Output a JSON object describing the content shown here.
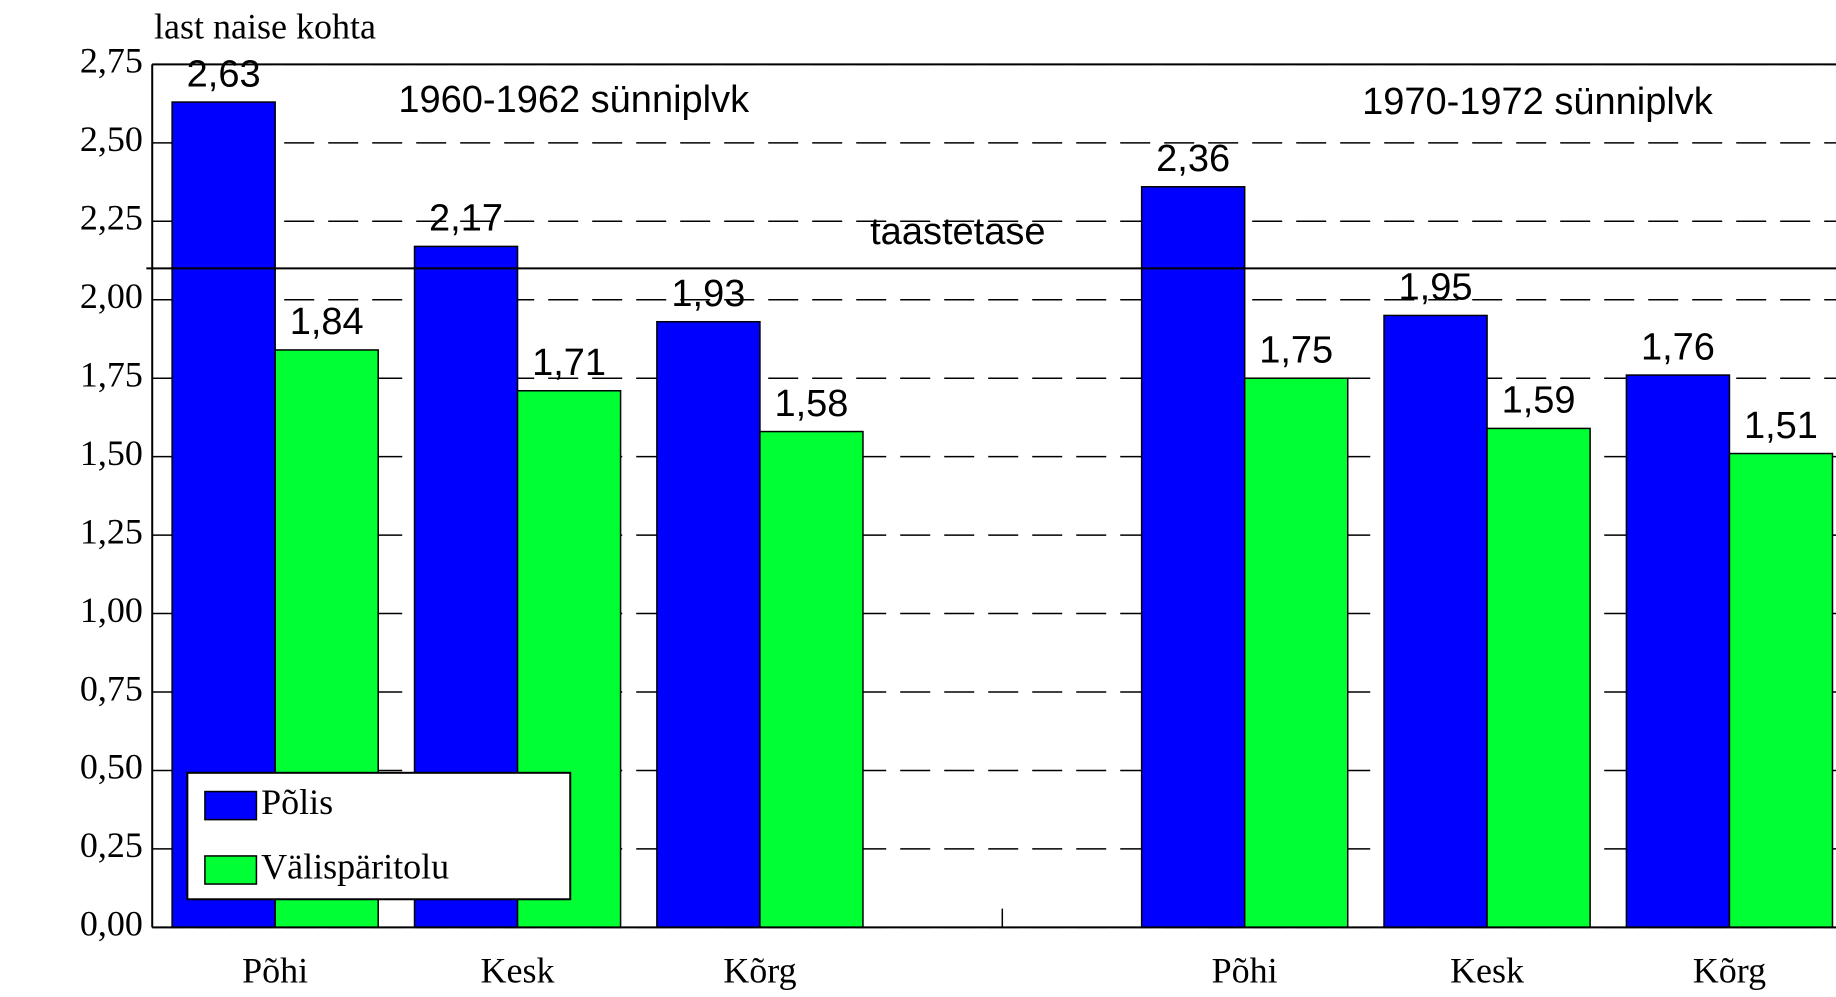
{
  "chart_data": {
    "type": "bar",
    "y_label": "last naise kohta",
    "categories": [
      "Põhi",
      "Kesk",
      "Kõrg",
      null,
      "Põhi",
      "Kesk",
      "Kõrg"
    ],
    "series": [
      {
        "name": "Põlis",
        "color": "#0000ff",
        "values": [
          2.63,
          2.17,
          1.93,
          null,
          2.36,
          1.95,
          1.76
        ],
        "value_labels": [
          "2,63",
          "2,17",
          "1,93",
          null,
          "2,36",
          "1,95",
          "1,76"
        ]
      },
      {
        "name": "Välispäritolu",
        "color": "#00ff33",
        "values": [
          1.84,
          1.71,
          1.58,
          null,
          1.75,
          1.59,
          1.51
        ],
        "value_labels": [
          "1,84",
          "1,71",
          "1,58",
          null,
          "1,75",
          "1,59",
          "1,51"
        ]
      }
    ],
    "ylim": [
      0,
      2.75
    ],
    "yticks": [
      {
        "value": 0,
        "label": "0,00"
      },
      {
        "value": 0.25,
        "label": "0,25"
      },
      {
        "value": 0.5,
        "label": "0,50"
      },
      {
        "value": 0.75,
        "label": "0,75"
      },
      {
        "value": 1,
        "label": "1,00"
      },
      {
        "value": 1.25,
        "label": "1,25"
      },
      {
        "value": 1.5,
        "label": "1,50"
      },
      {
        "value": 1.75,
        "label": "1,75"
      },
      {
        "value": 2,
        "label": "2,00"
      },
      {
        "value": 2.25,
        "label": "2,25"
      },
      {
        "value": 2.5,
        "label": "2,50"
      },
      {
        "value": 2.75,
        "label": "2,75"
      }
    ],
    "grid": true,
    "reference_line": {
      "value": 2.1,
      "label": "taastetase"
    },
    "annotations": [
      "1960-1962 sünniplvk",
      "1970-1972 sünniplvk"
    ],
    "legend": "lower left"
  }
}
